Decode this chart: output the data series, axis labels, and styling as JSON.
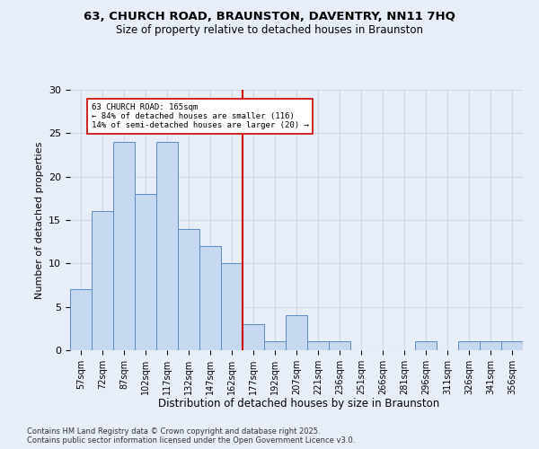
{
  "title_line1": "63, CHURCH ROAD, BRAUNSTON, DAVENTRY, NN11 7HQ",
  "title_line2": "Size of property relative to detached houses in Braunston",
  "xlabel": "Distribution of detached houses by size in Braunston",
  "ylabel": "Number of detached properties",
  "bar_labels": [
    "57sqm",
    "72sqm",
    "87sqm",
    "102sqm",
    "117sqm",
    "132sqm",
    "147sqm",
    "162sqm",
    "177sqm",
    "192sqm",
    "207sqm",
    "221sqm",
    "236sqm",
    "251sqm",
    "266sqm",
    "281sqm",
    "296sqm",
    "311sqm",
    "326sqm",
    "341sqm",
    "356sqm"
  ],
  "bar_values": [
    7,
    16,
    24,
    18,
    24,
    14,
    12,
    10,
    3,
    1,
    4,
    1,
    1,
    0,
    0,
    0,
    1,
    0,
    1,
    1,
    1
  ],
  "bar_color": "#c6d9f0",
  "bar_edge_color": "#5a8ac6",
  "annotation_text": "63 CHURCH ROAD: 165sqm\n← 84% of detached houses are smaller (116)\n14% of semi-detached houses are larger (20) →",
  "vline_x": 7.5,
  "vline_color": "#cc0000",
  "annotation_box_color": "#ffffff",
  "annotation_box_edge": "#cc0000",
  "ylim": [
    0,
    30
  ],
  "yticks": [
    0,
    5,
    10,
    15,
    20,
    25,
    30
  ],
  "grid_color": "#d0d8e8",
  "bg_color": "#e8eef8",
  "footer_line1": "Contains HM Land Registry data © Crown copyright and database right 2025.",
  "footer_line2": "Contains public sector information licensed under the Open Government Licence v3.0."
}
